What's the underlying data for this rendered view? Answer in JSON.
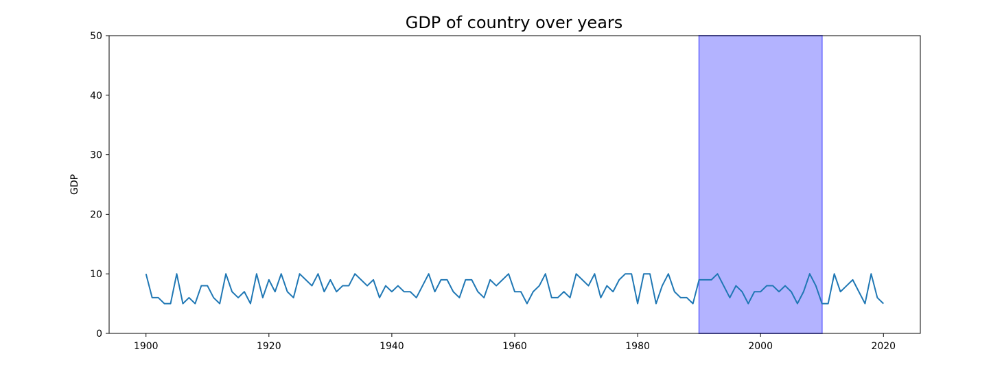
{
  "chart_data": {
    "type": "line",
    "title": "GDP of country over years",
    "xlabel": "",
    "ylabel": "GDP",
    "xlim": [
      1894,
      2026
    ],
    "ylim": [
      0,
      50
    ],
    "xticks": [
      1900,
      1920,
      1940,
      1960,
      1980,
      2000,
      2020
    ],
    "yticks": [
      0,
      10,
      20,
      30,
      40,
      50
    ],
    "xtick_labels": [
      "1900",
      "1920",
      "1940",
      "1960",
      "1980",
      "2000",
      "2020"
    ],
    "ytick_labels": [
      "0",
      "10",
      "20",
      "30",
      "40",
      "50"
    ],
    "grid": false,
    "highlight_span": {
      "x_start": 1990,
      "x_end": 2010,
      "color": "#b3b3ff"
    },
    "series": [
      {
        "color": "#1f77b4",
        "x": [
          1900,
          1901,
          1902,
          1903,
          1904,
          1905,
          1906,
          1907,
          1908,
          1909,
          1910,
          1911,
          1912,
          1913,
          1914,
          1915,
          1916,
          1917,
          1918,
          1919,
          1920,
          1921,
          1922,
          1923,
          1924,
          1925,
          1926,
          1927,
          1928,
          1929,
          1930,
          1931,
          1932,
          1933,
          1934,
          1935,
          1936,
          1937,
          1938,
          1939,
          1940,
          1941,
          1942,
          1943,
          1944,
          1945,
          1946,
          1947,
          1948,
          1949,
          1950,
          1951,
          1952,
          1953,
          1954,
          1955,
          1956,
          1957,
          1958,
          1959,
          1960,
          1961,
          1962,
          1963,
          1964,
          1965,
          1966,
          1967,
          1968,
          1969,
          1970,
          1971,
          1972,
          1973,
          1974,
          1975,
          1976,
          1977,
          1978,
          1979,
          1980,
          1981,
          1982,
          1983,
          1984,
          1985,
          1986,
          1987,
          1988,
          1989,
          1990,
          1991,
          1992,
          1993,
          1994,
          1995,
          1996,
          1997,
          1998,
          1999,
          2000,
          2001,
          2002,
          2003,
          2004,
          2005,
          2006,
          2007,
          2008,
          2009,
          2010,
          2011,
          2012,
          2013,
          2014,
          2015,
          2016,
          2017,
          2018,
          2019,
          2020
        ],
        "y": [
          10,
          6,
          6,
          5,
          5,
          10,
          5,
          6,
          5,
          8,
          8,
          6,
          5,
          10,
          7,
          6,
          7,
          5,
          10,
          6,
          9,
          7,
          10,
          7,
          6,
          10,
          9,
          8,
          10,
          7,
          9,
          7,
          8,
          8,
          10,
          9,
          8,
          9,
          6,
          8,
          7,
          8,
          7,
          7,
          6,
          8,
          10,
          7,
          9,
          9,
          7,
          6,
          9,
          9,
          7,
          6,
          9,
          8,
          9,
          10,
          7,
          7,
          5,
          7,
          8,
          10,
          6,
          6,
          7,
          6,
          10,
          9,
          8,
          10,
          6,
          8,
          7,
          9,
          10,
          10,
          5,
          10,
          10,
          5,
          8,
          10,
          7,
          6,
          6,
          5,
          9,
          9,
          9,
          10,
          8,
          6,
          8,
          7,
          5,
          7,
          7,
          8,
          8,
          7,
          8,
          7,
          5,
          7,
          10,
          8,
          5,
          5,
          10,
          7,
          8,
          9,
          7,
          5,
          10,
          6,
          5
        ]
      }
    ]
  }
}
